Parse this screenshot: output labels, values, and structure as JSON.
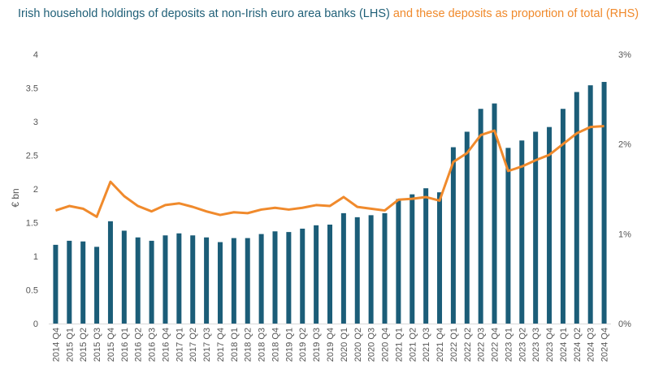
{
  "chart_data": {
    "type": "bar+line",
    "title_lhs": "Irish household holdings of deposits at non-Irish euro area banks (LHS)",
    "title_rhs": " and these deposits as proportion of total (RHS)",
    "ylabel": "€ bn",
    "ylim_left": [
      0,
      4
    ],
    "ylim_right": [
      0,
      3
    ],
    "left_ticks": [
      "0",
      "0.5",
      "1",
      "1.5",
      "2",
      "2.5",
      "3",
      "3.5",
      "4"
    ],
    "right_ticks": [
      "0%",
      "1%",
      "2%",
      "3%"
    ],
    "categories": [
      "2014 Q4",
      "2015 Q1",
      "2015 Q2",
      "2015 Q3",
      "2015 Q4",
      "2016 Q1",
      "2016 Q2",
      "2016 Q3",
      "2016 Q4",
      "2017 Q1",
      "2017 Q2",
      "2017 Q3",
      "2017 Q4",
      "2018 Q1",
      "2018 Q2",
      "2018 Q3",
      "2018 Q4",
      "2019 Q1",
      "2019 Q2",
      "2019 Q3",
      "2019 Q4",
      "2020 Q1",
      "2020 Q2",
      "2020 Q3",
      "2020 Q4",
      "2021 Q1",
      "2021 Q2",
      "2021 Q3",
      "2021 Q4",
      "2022 Q1",
      "2022 Q2",
      "2022 Q3",
      "2022 Q4",
      "2023 Q1",
      "2023 Q2",
      "2023 Q3",
      "2023 Q4",
      "2024 Q1",
      "2024 Q2",
      "2024 Q3",
      "2024 Q4"
    ],
    "series": [
      {
        "type": "bar",
        "axis": "left",
        "values": [
          1.17,
          1.23,
          1.22,
          1.14,
          1.52,
          1.38,
          1.28,
          1.23,
          1.31,
          1.34,
          1.31,
          1.28,
          1.21,
          1.27,
          1.27,
          1.33,
          1.37,
          1.36,
          1.41,
          1.46,
          1.47,
          1.64,
          1.58,
          1.61,
          1.64,
          1.85,
          1.92,
          2.01,
          1.95,
          2.62,
          2.85,
          3.19,
          3.27,
          2.61,
          2.72,
          2.85,
          2.92,
          3.19,
          3.44,
          3.54,
          3.59
        ],
        "color": "#1b5d78"
      },
      {
        "type": "line",
        "axis": "right",
        "values": [
          1.26,
          1.31,
          1.28,
          1.19,
          1.58,
          1.42,
          1.31,
          1.25,
          1.32,
          1.34,
          1.3,
          1.25,
          1.21,
          1.24,
          1.23,
          1.27,
          1.29,
          1.27,
          1.29,
          1.32,
          1.31,
          1.41,
          1.3,
          1.28,
          1.26,
          1.38,
          1.39,
          1.41,
          1.37,
          1.8,
          1.9,
          2.1,
          2.15,
          1.7,
          1.75,
          1.82,
          1.88,
          2.0,
          2.12,
          2.19,
          2.2
        ],
        "color": "#f08a2c"
      }
    ]
  }
}
